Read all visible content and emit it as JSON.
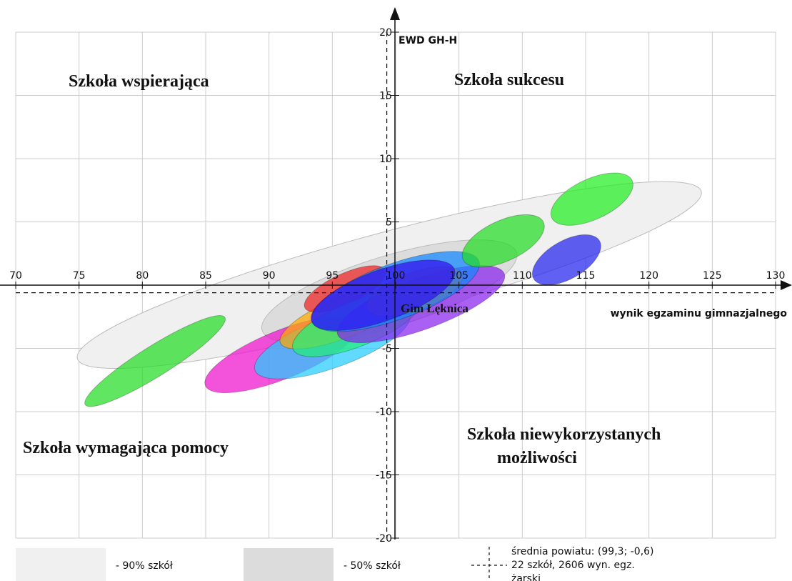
{
  "chart_data": {
    "type": "scatter",
    "title": "",
    "xlabel": "wynik egzaminu gimnazjalnego",
    "ylabel": "EWD GH-H",
    "xlim": [
      70,
      130
    ],
    "ylim": [
      -20,
      20
    ],
    "x_ticks": [
      70,
      75,
      80,
      85,
      90,
      95,
      100,
      105,
      110,
      115,
      120,
      125,
      130
    ],
    "y_ticks": [
      -20,
      -15,
      -10,
      -5,
      5,
      10,
      15,
      20
    ],
    "grid": true,
    "quadrants": {
      "top_left": "Szkoła wspierająca",
      "top_right": "Szkoła sukcesu",
      "bottom_left": "Szkoła wymagająca pomocy",
      "bottom_right_line1": "Szkoła niewykorzystanych",
      "bottom_right_line2": "możliwości"
    },
    "mean_lines": {
      "x": 99.3,
      "y": -0.6
    },
    "highlighted_school": {
      "label": "Gim Łęknica",
      "x": 100,
      "y": -1
    },
    "regions": [
      {
        "kind": "90%",
        "color": "#f0f0f0",
        "cx": 99.5,
        "cy": 0.8,
        "rx": 25.5,
        "ry": 3.4,
        "angle_deg": -15
      },
      {
        "kind": "50%",
        "color": "#dcdcdc",
        "cx": 99.5,
        "cy": -0.5,
        "rx": 10.5,
        "ry": 2.8,
        "angle_deg": -17
      }
    ],
    "ellipses": [
      {
        "color": "#22dd22",
        "cx": 81,
        "cy": -6,
        "rx": 6.5,
        "ry": 1.2,
        "angle_deg": -32
      },
      {
        "color": "#ee11cc",
        "cx": 91,
        "cy": -5.5,
        "rx": 6.5,
        "ry": 1.9,
        "angle_deg": -22
      },
      {
        "color": "#22ccff",
        "cx": 95,
        "cy": -4.5,
        "rx": 6.5,
        "ry": 2.0,
        "angle_deg": -20
      },
      {
        "color": "#ffaa00",
        "cx": 96,
        "cy": -2.5,
        "rx": 5.5,
        "ry": 1.6,
        "angle_deg": -22
      },
      {
        "color": "#ee2222",
        "cx": 96,
        "cy": -0.3,
        "rx": 3.5,
        "ry": 1.2,
        "angle_deg": -25
      },
      {
        "color": "#22ee77",
        "cx": 97,
        "cy": -3,
        "rx": 5.5,
        "ry": 1.8,
        "angle_deg": -22
      },
      {
        "color": "#8822ee",
        "cx": 102,
        "cy": -1.5,
        "rx": 7,
        "ry": 2.0,
        "angle_deg": -20
      },
      {
        "color": "#ff6611",
        "cx": 101.5,
        "cy": -0.5,
        "rx": 4,
        "ry": 1.5,
        "angle_deg": -20
      },
      {
        "color": "#1188ff",
        "cx": 100,
        "cy": -0.5,
        "rx": 7,
        "ry": 2.2,
        "angle_deg": -20
      },
      {
        "color": "#3311ee",
        "cx": 99,
        "cy": -0.8,
        "rx": 6,
        "ry": 2.0,
        "angle_deg": -20
      },
      {
        "color": "#22dd22",
        "cx": 108.5,
        "cy": 3.5,
        "rx": 3.5,
        "ry": 1.6,
        "angle_deg": -25
      },
      {
        "color": "#22ee22",
        "cx": 115.5,
        "cy": 6.8,
        "rx": 3.5,
        "ry": 1.6,
        "angle_deg": -25
      },
      {
        "color": "#2222ee",
        "cx": 113.5,
        "cy": 2,
        "rx": 3,
        "ry": 1.5,
        "angle_deg": -30
      }
    ]
  },
  "legend": {
    "p90_label": "- 90% szkół",
    "p50_label": "- 50% szkół",
    "mean_line1": "średnia powiatu: (99,3; -0,6)",
    "mean_line2": "22 szkół, 2606 wyn. egz.",
    "mean_line3": "żarski",
    "p90_color": "#f0f0f0",
    "p50_color": "#dcdcdc"
  }
}
